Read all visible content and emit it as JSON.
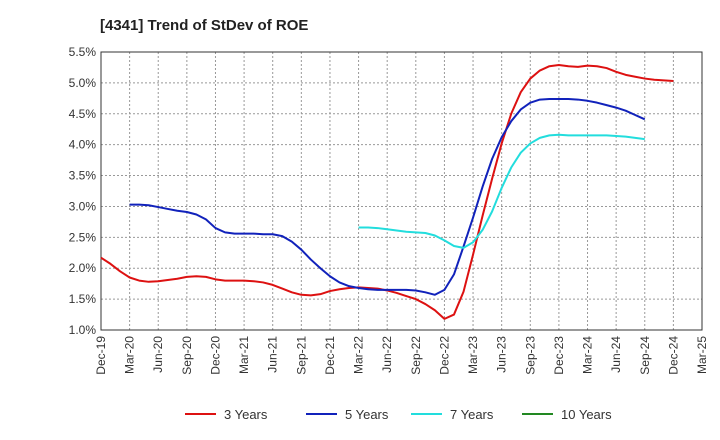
{
  "chart_data": {
    "type": "line",
    "title": "[4341]  Trend of StDev of ROE",
    "xlabel": "",
    "ylabel": "",
    "x_tick_labels": [
      "Dec-19",
      "Mar-20",
      "Jun-20",
      "Sep-20",
      "Dec-20",
      "Mar-21",
      "Jun-21",
      "Sep-21",
      "Dec-21",
      "Mar-22",
      "Jun-22",
      "Sep-22",
      "Dec-22",
      "Mar-23",
      "Jun-23",
      "Sep-23",
      "Dec-23",
      "Mar-24",
      "Jun-24",
      "Sep-24",
      "Dec-24",
      "Mar-25"
    ],
    "y_tick_labels": [
      "1.0%",
      "1.5%",
      "2.0%",
      "2.5%",
      "3.0%",
      "3.5%",
      "4.0%",
      "4.5%",
      "5.0%",
      "5.5%"
    ],
    "ylim": [
      1.0,
      5.5
    ],
    "grid": true,
    "legend_position": "bottom",
    "series": [
      {
        "name": "3 Years",
        "color": "#dd1111",
        "start_index": 0,
        "values": [
          2.17,
          2.07,
          1.95,
          1.85,
          1.8,
          1.78,
          1.79,
          1.81,
          1.83,
          1.86,
          1.87,
          1.86,
          1.82,
          1.8,
          1.8,
          1.8,
          1.79,
          1.77,
          1.73,
          1.67,
          1.61,
          1.57,
          1.56,
          1.58,
          1.63,
          1.66,
          1.68,
          1.69,
          1.68,
          1.67,
          1.64,
          1.6,
          1.55,
          1.5,
          1.42,
          1.32,
          1.18,
          1.25,
          1.62,
          2.22,
          2.85,
          3.45,
          4.02,
          4.5,
          4.85,
          5.07,
          5.2,
          5.27,
          5.29,
          5.27,
          5.26,
          5.28,
          5.27,
          5.24,
          5.18,
          5.13,
          5.1,
          5.07,
          5.05,
          5.04,
          5.03
        ]
      },
      {
        "name": "5 Years",
        "color": "#1122bb",
        "start_index": 3,
        "values": [
          3.03,
          3.03,
          3.02,
          2.99,
          2.96,
          2.93,
          2.91,
          2.87,
          2.79,
          2.65,
          2.58,
          2.56,
          2.56,
          2.56,
          2.55,
          2.55,
          2.52,
          2.43,
          2.3,
          2.14,
          2.0,
          1.87,
          1.77,
          1.71,
          1.68,
          1.66,
          1.65,
          1.65,
          1.65,
          1.65,
          1.64,
          1.61,
          1.57,
          1.65,
          1.9,
          2.35,
          2.82,
          3.32,
          3.77,
          4.12,
          4.38,
          4.57,
          4.68,
          4.73,
          4.74,
          4.74,
          4.74,
          4.73,
          4.71,
          4.68,
          4.64,
          4.6,
          4.55,
          4.48,
          4.41
        ]
      },
      {
        "name": "7 Years",
        "color": "#22dddd",
        "start_index": 27,
        "values": [
          2.66,
          2.66,
          2.65,
          2.63,
          2.61,
          2.59,
          2.58,
          2.57,
          2.53,
          2.45,
          2.36,
          2.33,
          2.42,
          2.62,
          2.92,
          3.3,
          3.63,
          3.87,
          4.02,
          4.11,
          4.15,
          4.16,
          4.15,
          4.15,
          4.15,
          4.15,
          4.15,
          4.14,
          4.13,
          4.11,
          4.09
        ]
      },
      {
        "name": "10 Years",
        "color": "#228822",
        "start_index": 0,
        "values": []
      }
    ]
  }
}
